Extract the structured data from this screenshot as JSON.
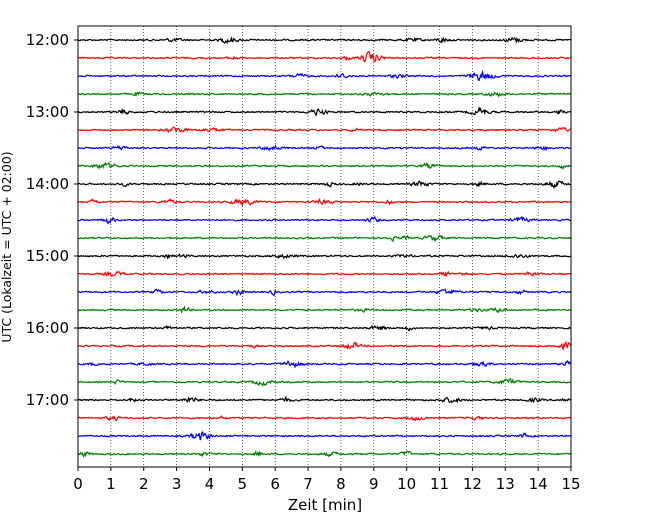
{
  "chart_data": {
    "type": "line",
    "title": "",
    "xlabel": "Zeit  [min]",
    "ylabel": "UTC (Lokalzeit = UTC + 02:00)",
    "xlim": [
      0,
      15
    ],
    "x_ticks": [
      0,
      1,
      2,
      3,
      4,
      5,
      6,
      7,
      8,
      9,
      10,
      11,
      12,
      13,
      14,
      15
    ],
    "y_tick_labels": [
      "12:00",
      "13:00",
      "14:00",
      "15:00",
      "16:00",
      "17:00"
    ],
    "trace_interval_minutes": 15,
    "first_trace": "12:00",
    "trace_count": 24,
    "trace_colors": [
      "#000000",
      "#ff0000",
      "#0000ff",
      "#007f00"
    ],
    "grid": "vertical-dotted",
    "legend": "none"
  }
}
